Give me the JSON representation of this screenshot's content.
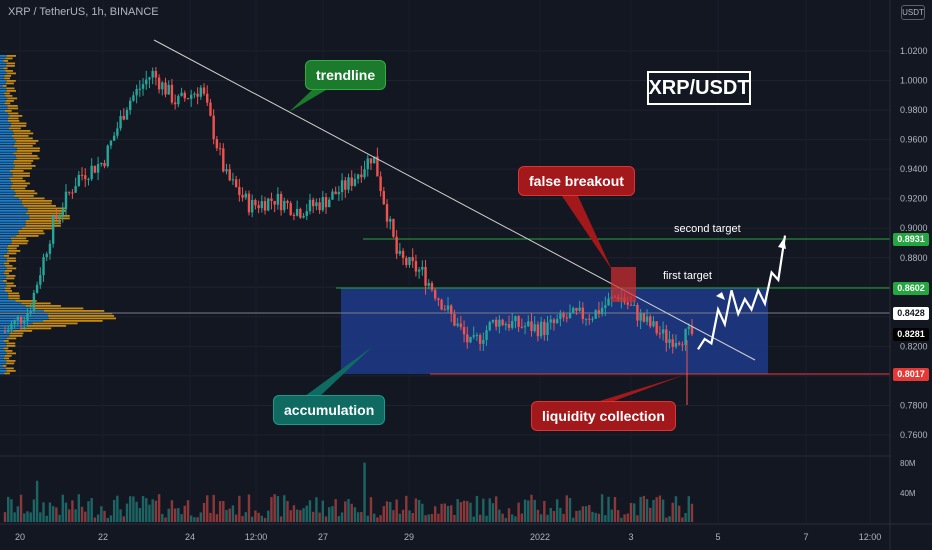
{
  "header": {
    "title": "XRP / TetherUS, 1h, BINANCE"
  },
  "symbol_label": "XRP/USDT",
  "price_axis": {
    "unit": "USDT",
    "ticks": [
      "1.0200",
      "1.0000",
      "0.9800",
      "0.9600",
      "0.9400",
      "0.9200",
      "0.9000",
      "0.8800",
      "0.8600",
      "0.8400",
      "0.8200",
      "0.8000",
      "0.7800",
      "0.7600"
    ],
    "tick_values": [
      1.02,
      1.0,
      0.98,
      0.96,
      0.94,
      0.92,
      0.9,
      0.88,
      0.86,
      0.84,
      0.82,
      0.8,
      0.78,
      0.76
    ]
  },
  "price_tags": {
    "second_target": "0.8931",
    "first_target": "0.8602",
    "gray_level": "0.8428",
    "current": "0.8281",
    "support": "0.8017"
  },
  "volume_axis": {
    "ticks": [
      "80M",
      "40M"
    ]
  },
  "time_axis": {
    "labels": [
      "20",
      "22",
      "24",
      "12:00",
      "27",
      "29",
      "2022",
      "3",
      "5",
      "7",
      "12:00"
    ]
  },
  "annotations": {
    "trendline": "trendline",
    "false_breakout": "false breakout",
    "accumulation": "accumulation",
    "liquidity_collection": "liquidity collection",
    "first_target": "first target",
    "second_target": "second target"
  },
  "colors": {
    "background": "#131722",
    "up": "#26a69a",
    "down": "#ef5350",
    "zone": "#1e3a8a",
    "target_line": "#26a641",
    "support_line": "#e53935",
    "trend_line": "#c8c8c8",
    "vp_up": "#2196f3",
    "vp_down": "#f4a70b"
  },
  "chart_data": {
    "type": "candlestick",
    "title": "XRP / TetherUS, 1h, BINANCE",
    "price_path": [
      {
        "t": "19",
        "p": 0.83
      },
      {
        "t": "20",
        "p": 0.845
      },
      {
        "t": "21",
        "p": 0.905
      },
      {
        "t": "21.5",
        "p": 0.935
      },
      {
        "t": "22",
        "p": 0.945
      },
      {
        "t": "22.5",
        "p": 0.985
      },
      {
        "t": "23",
        "p": 1.005
      },
      {
        "t": "23.5",
        "p": 0.985
      },
      {
        "t": "24",
        "p": 0.995
      },
      {
        "t": "24.5",
        "p": 0.935
      },
      {
        "t": "25",
        "p": 0.915
      },
      {
        "t": "25.5",
        "p": 0.92
      },
      {
        "t": "26",
        "p": 0.912
      },
      {
        "t": "26.5",
        "p": 0.918
      },
      {
        "t": "27",
        "p": 0.93
      },
      {
        "t": "27.5",
        "p": 0.95
      },
      {
        "t": "28",
        "p": 0.88
      },
      {
        "t": "28.5",
        "p": 0.87
      },
      {
        "t": "29",
        "p": 0.845
      },
      {
        "t": "29.5",
        "p": 0.82
      },
      {
        "t": "30",
        "p": 0.838
      },
      {
        "t": "31",
        "p": 0.834
      },
      {
        "t": "1",
        "p": 0.832
      },
      {
        "t": "2",
        "p": 0.84
      },
      {
        "t": "2.5",
        "p": 0.842
      },
      {
        "t": "3",
        "p": 0.855
      },
      {
        "t": "3.5",
        "p": 0.838
      },
      {
        "t": "4",
        "p": 0.825
      },
      {
        "t": "4.3",
        "p": 0.828
      }
    ],
    "levels": {
      "second_target": 0.8931,
      "first_target": 0.8602,
      "gray_level": 0.8428,
      "current": 0.8281,
      "support": 0.8017
    },
    "accumulation_zone": {
      "from": "28",
      "to": "5.5",
      "low": 0.8017,
      "high": 0.8602
    },
    "projected_path": [
      0.818,
      0.825,
      0.822,
      0.845,
      0.835,
      0.858,
      0.842,
      0.852,
      0.845,
      0.858,
      0.849,
      0.87,
      0.865,
      0.895
    ],
    "grid": true
  }
}
